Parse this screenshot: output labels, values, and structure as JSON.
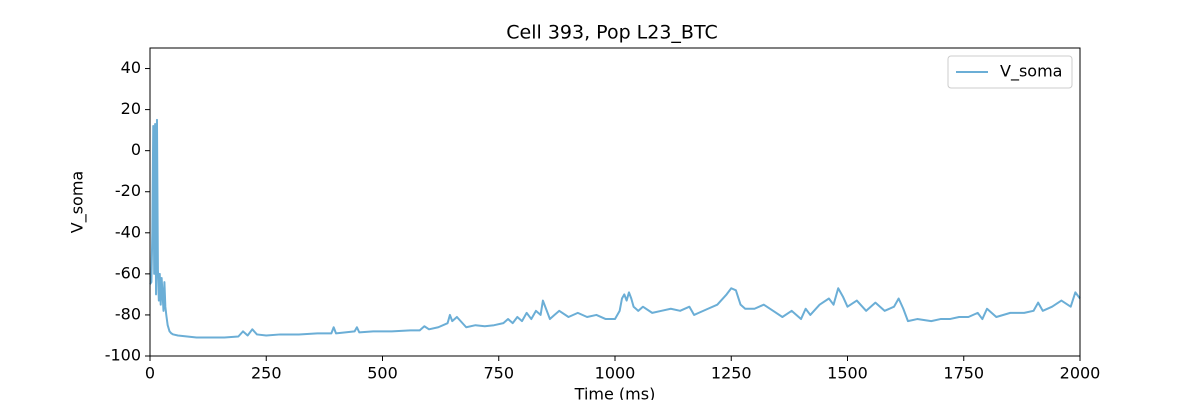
{
  "chart_data": {
    "type": "line",
    "title": "Cell 393, Pop L23_BTC",
    "x_label": "Time (ms)",
    "y_label": "V_soma",
    "x": [
      0,
      3,
      5,
      7,
      9,
      11,
      13,
      15,
      17,
      19,
      21,
      23,
      25,
      27,
      29,
      31,
      33,
      35,
      38,
      42,
      46,
      50,
      60,
      80,
      100,
      130,
      160,
      190,
      200,
      210,
      220,
      230,
      250,
      280,
      320,
      360,
      390,
      395,
      400,
      420,
      440,
      445,
      450,
      480,
      520,
      560,
      580,
      590,
      600,
      620,
      640,
      645,
      650,
      660,
      680,
      700,
      720,
      740,
      760,
      770,
      780,
      790,
      800,
      810,
      820,
      830,
      840,
      845,
      850,
      860,
      870,
      880,
      900,
      920,
      940,
      960,
      980,
      1000,
      1010,
      1015,
      1020,
      1025,
      1030,
      1035,
      1040,
      1050,
      1060,
      1080,
      1100,
      1120,
      1140,
      1160,
      1170,
      1180,
      1200,
      1220,
      1240,
      1250,
      1260,
      1270,
      1280,
      1300,
      1320,
      1340,
      1360,
      1380,
      1400,
      1410,
      1420,
      1440,
      1460,
      1470,
      1480,
      1490,
      1500,
      1520,
      1540,
      1560,
      1580,
      1600,
      1610,
      1620,
      1630,
      1650,
      1680,
      1700,
      1720,
      1740,
      1760,
      1780,
      1790,
      1800,
      1820,
      1850,
      1880,
      1900,
      1910,
      1920,
      1940,
      1960,
      1980,
      1990,
      2000
    ],
    "series": [
      {
        "name": "V_soma",
        "color": "#6baed6",
        "values": [
          -65,
          -64,
          -40,
          12,
          -60,
          13,
          -70,
          15,
          -58,
          -73,
          -60,
          -75,
          -62,
          -70,
          -78,
          -64,
          -76,
          -80,
          -85,
          -88,
          -89,
          -89.5,
          -90,
          -90.5,
          -91,
          -91,
          -91,
          -90.5,
          -88,
          -90,
          -87,
          -89.5,
          -90,
          -89.5,
          -89.5,
          -89,
          -89,
          -86,
          -89,
          -88.5,
          -88,
          -86,
          -88.5,
          -88,
          -88,
          -87.5,
          -87.5,
          -85.5,
          -87,
          -86,
          -84,
          -80,
          -83,
          -81,
          -86,
          -85,
          -85.5,
          -85,
          -84,
          -82,
          -84,
          -81,
          -83,
          -79,
          -82,
          -78,
          -80,
          -73,
          -76,
          -82,
          -80,
          -78,
          -81,
          -79,
          -81,
          -80,
          -82,
          -82,
          -78,
          -72,
          -70,
          -73,
          -69,
          -72,
          -76,
          -78,
          -76,
          -79,
          -78,
          -77,
          -78,
          -76,
          -80,
          -79,
          -77,
          -75,
          -70,
          -67,
          -68,
          -75,
          -77,
          -77,
          -75,
          -78,
          -81,
          -78,
          -82,
          -77,
          -80,
          -75,
          -72,
          -75,
          -67,
          -71,
          -76,
          -73,
          -78,
          -74,
          -78,
          -76,
          -72,
          -77,
          -83,
          -82,
          -83,
          -82,
          -82,
          -81,
          -81,
          -79,
          -82,
          -77,
          -81,
          -79,
          -79,
          -78,
          -74,
          -78,
          -76,
          -73,
          -76,
          -69,
          -72
        ]
      }
    ],
    "xlim": [
      0,
      2000
    ],
    "xticks": [
      0,
      250,
      500,
      750,
      1000,
      1250,
      1500,
      1750,
      2000
    ],
    "ylim": [
      -100,
      50
    ],
    "yticks": [
      -100,
      -80,
      -60,
      -40,
      -20,
      0,
      20,
      40
    ],
    "legend": "upper right"
  }
}
